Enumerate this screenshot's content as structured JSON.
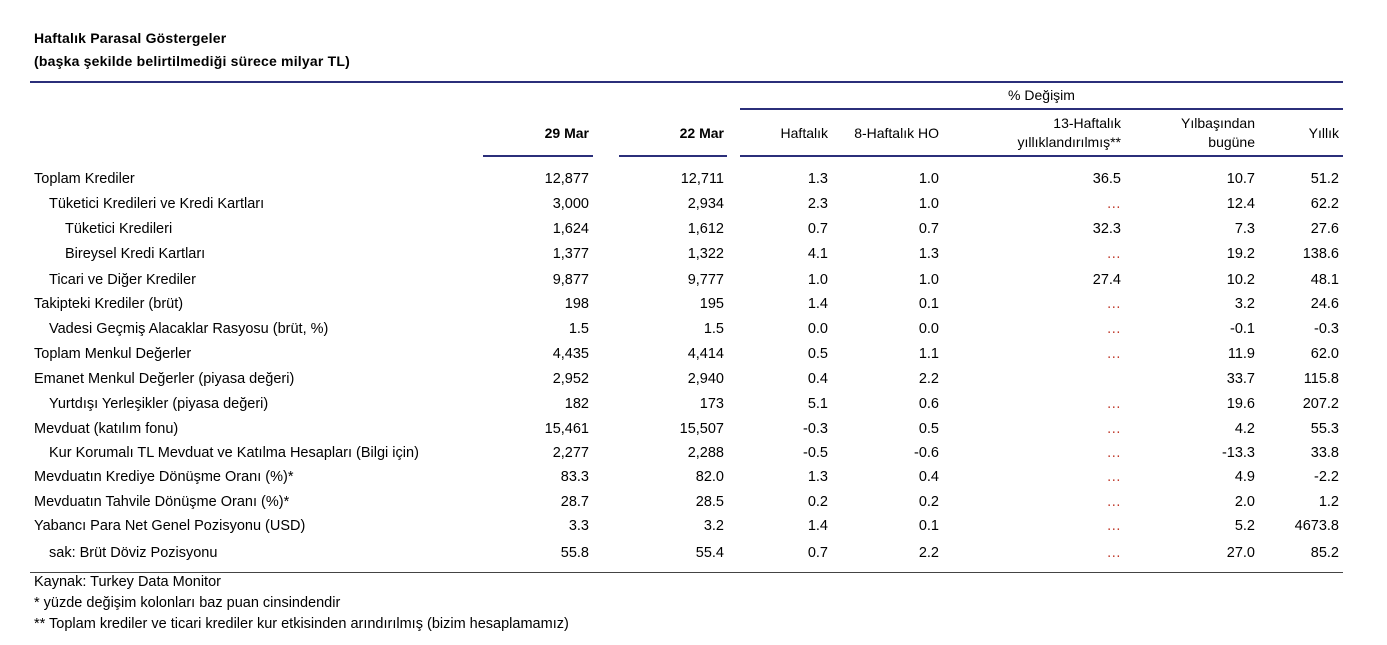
{
  "title": "Haftalık Parasal Göstergeler",
  "subtitle": "(başka şekilde belirtilmediği sürece milyar TL)",
  "header": {
    "pct_change": "% Değişim",
    "col_29mar": "29 Mar",
    "col_22mar": "22 Mar",
    "col_weekly": "Haftalık",
    "col_8w": "8-Haftalık HO",
    "col_13w_l1": "13-Haftalık",
    "col_13w_l2": "yıllıklandırılmış**",
    "col_ytd_l1": "Yılbaşından",
    "col_ytd_l2": "bugüne",
    "col_annual": "Yıllık"
  },
  "rows": [
    {
      "label": "Toplam Krediler",
      "indent": 0,
      "c1": "12,877",
      "c2": "12,711",
      "w": "1.3",
      "h8": "1.0",
      "h13": "36.5",
      "ytd": "10.7",
      "y": "51.2"
    },
    {
      "label": "Tüketici Kredileri ve Kredi Kartları",
      "indent": 1,
      "c1": "3,000",
      "c2": "2,934",
      "w": "2.3",
      "h8": "1.0",
      "h13": "…",
      "ytd": "12.4",
      "y": "62.2"
    },
    {
      "label": "Tüketici Kredileri",
      "indent": 2,
      "c1": "1,624",
      "c2": "1,612",
      "w": "0.7",
      "h8": "0.7",
      "h13": "32.3",
      "ytd": "7.3",
      "y": "27.6"
    },
    {
      "label": "Bireysel Kredi Kartları",
      "indent": 2,
      "c1": "1,377",
      "c2": "1,322",
      "w": "4.1",
      "h8": "1.3",
      "h13": "…",
      "ytd": "19.2",
      "y": "138.6"
    },
    {
      "label": "Ticari ve Diğer Krediler",
      "indent": 1,
      "c1": "9,877",
      "c2": "9,777",
      "w": "1.0",
      "h8": "1.0",
      "h13": "27.4",
      "ytd": "10.2",
      "y": "48.1"
    },
    {
      "label": "Takipteki Krediler (brüt)",
      "indent": 0,
      "c1": "198",
      "c2": "195",
      "w": "1.4",
      "h8": "0.1",
      "h13": "…",
      "ytd": "3.2",
      "y": "24.6"
    },
    {
      "label": "Vadesi Geçmiş Alacaklar Rasyosu (brüt, %)",
      "indent": 1,
      "c1": "1.5",
      "c2": "1.5",
      "w": "0.0",
      "h8": "0.0",
      "h13": "…",
      "ytd": "-0.1",
      "y": "-0.3"
    },
    {
      "label": "Toplam Menkul Değerler",
      "indent": 0,
      "c1": "4,435",
      "c2": "4,414",
      "w": "0.5",
      "h8": "1.1",
      "h13": "…",
      "ytd": "11.9",
      "y": "62.0"
    },
    {
      "label": "Emanet Menkul Değerler (piyasa değeri)",
      "indent": 0,
      "c1": "2,952",
      "c2": "2,940",
      "w": "0.4",
      "h8": "2.2",
      "h13": "",
      "ytd": "33.7",
      "y": "115.8"
    },
    {
      "label": "Yurtdışı Yerleşikler (piyasa değeri)",
      "indent": 1,
      "c1": "182",
      "c2": "173",
      "w": "5.1",
      "h8": "0.6",
      "h13": "…",
      "ytd": "19.6",
      "y": "207.2"
    },
    {
      "label": "Mevduat (katılım fonu)",
      "indent": 0,
      "c1": "15,461",
      "c2": "15,507",
      "w": "-0.3",
      "h8": "0.5",
      "h13": "…",
      "ytd": "4.2",
      "y": "55.3"
    },
    {
      "label": "Kur Korumalı TL Mevduat ve Katılma Hesapları (Bilgi için)",
      "indent": 1,
      "c1": "2,277",
      "c2": "2,288",
      "w": "-0.5",
      "h8": "-0.6",
      "h13": "…",
      "ytd": "-13.3",
      "y": "33.8"
    },
    {
      "label": "Mevduatın Krediye Dönüşme Oranı (%)*",
      "indent": 0,
      "c1": "83.3",
      "c2": "82.0",
      "w": "1.3",
      "h8": "0.4",
      "h13": "…",
      "ytd": "4.9",
      "y": "-2.2"
    },
    {
      "label": "Mevduatın Tahvile Dönüşme Oranı (%)*",
      "indent": 0,
      "c1": "28.7",
      "c2": "28.5",
      "w": "0.2",
      "h8": "0.2",
      "h13": "…",
      "ytd": "2.0",
      "y": "1.2"
    },
    {
      "label": "Yabancı Para Net Genel Pozisyonu (USD)",
      "indent": 0,
      "c1": "3.3",
      "c2": "3.2",
      "w": "1.4",
      "h8": "0.1",
      "h13": "…",
      "ytd": "5.2",
      "y": "4673.8"
    },
    {
      "label": "sak: Brüt Döviz Pozisyonu",
      "indent": 1,
      "c1": "55.8",
      "c2": "55.4",
      "w": "0.7",
      "h8": "2.2",
      "h13": "…",
      "ytd": "27.0",
      "y": "85.2"
    }
  ],
  "footnotes": {
    "source": "Kaynak: Turkey Data Monitor",
    "note1": "* yüzde değişim kolonları baz puan cinsindendir",
    "note2": "** Toplam krediler ve ticari krediler kur etkisinden arındırılmış (bizim hesaplamamız)"
  },
  "colors": {
    "rule": "#2b2f7a",
    "ellipsis": "#c0392b"
  }
}
